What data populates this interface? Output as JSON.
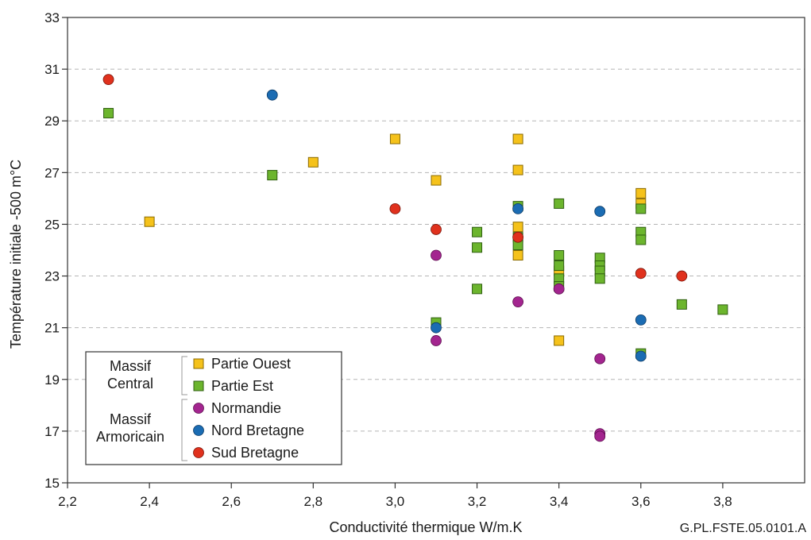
{
  "chart_data": {
    "type": "scatter",
    "title": "",
    "xlabel": "Conductivité thermique W/m.K",
    "ylabel": "Température initiale -500 m°C",
    "reference": "G.PL.FSTE.05.0101.A",
    "xlim": [
      2.2,
      4.0
    ],
    "ylim": [
      15,
      33
    ],
    "xticks": [
      2.2,
      2.4,
      2.6,
      2.8,
      3.0,
      3.2,
      3.4,
      3.6,
      3.8
    ],
    "xtick_labels": [
      "2,2",
      "2,4",
      "2,6",
      "2,8",
      "3,0",
      "3,2",
      "3,4",
      "3,6",
      "3,8"
    ],
    "yticks": [
      15,
      17,
      19,
      21,
      23,
      25,
      27,
      29,
      31,
      33
    ],
    "ytick_labels": [
      "15",
      "17",
      "19",
      "21",
      "23",
      "25",
      "27",
      "29",
      "31",
      "33"
    ],
    "grid": "horizontal dashed",
    "legend_position": "bottom-left",
    "legend_groups": [
      {
        "label_lines": [
          "Massif",
          "Central"
        ],
        "series": [
          "Partie Ouest",
          "Partie Est"
        ]
      },
      {
        "label_lines": [
          "Massif",
          "Armoricain"
        ],
        "series": [
          "Normandie",
          "Nord Bretagne",
          "Sud Bretagne"
        ]
      }
    ],
    "series": [
      {
        "name": "Partie Ouest",
        "marker": "square",
        "color": "#f5c21b",
        "stroke": "#8a6a00",
        "points": [
          [
            2.4,
            25.1
          ],
          [
            2.8,
            27.4
          ],
          [
            3.0,
            28.3
          ],
          [
            3.1,
            26.7
          ],
          [
            3.3,
            28.3
          ],
          [
            3.3,
            27.1
          ],
          [
            3.3,
            24.9
          ],
          [
            3.3,
            23.8
          ],
          [
            3.4,
            23.2
          ],
          [
            3.4,
            20.5
          ],
          [
            3.6,
            26.2
          ],
          [
            3.6,
            25.8
          ]
        ]
      },
      {
        "name": "Partie Est",
        "marker": "square",
        "color": "#6cb52d",
        "stroke": "#2f5e10",
        "points": [
          [
            2.3,
            29.3
          ],
          [
            2.7,
            26.9
          ],
          [
            3.1,
            21.2
          ],
          [
            3.2,
            24.7
          ],
          [
            3.2,
            24.1
          ],
          [
            3.2,
            22.5
          ],
          [
            3.3,
            25.7
          ],
          [
            3.3,
            24.5
          ],
          [
            3.3,
            24.2
          ],
          [
            3.4,
            25.8
          ],
          [
            3.4,
            23.8
          ],
          [
            3.4,
            23.4
          ],
          [
            3.4,
            22.9
          ],
          [
            3.4,
            22.6
          ],
          [
            3.5,
            23.7
          ],
          [
            3.5,
            23.4
          ],
          [
            3.5,
            23.2
          ],
          [
            3.5,
            22.9
          ],
          [
            3.6,
            25.6
          ],
          [
            3.6,
            24.7
          ],
          [
            3.6,
            24.4
          ],
          [
            3.6,
            20.0
          ],
          [
            3.7,
            21.9
          ],
          [
            3.8,
            21.7
          ]
        ]
      },
      {
        "name": "Normandie",
        "marker": "circle",
        "color": "#a3258f",
        "stroke": "#5e1050",
        "points": [
          [
            3.1,
            23.8
          ],
          [
            3.1,
            20.5
          ],
          [
            3.3,
            22.0
          ],
          [
            3.4,
            22.5
          ],
          [
            3.5,
            19.8
          ],
          [
            3.5,
            16.9
          ],
          [
            3.5,
            16.8
          ]
        ]
      },
      {
        "name": "Nord Bretagne",
        "marker": "circle",
        "color": "#1b6cb3",
        "stroke": "#0c3a66",
        "points": [
          [
            2.7,
            30.0
          ],
          [
            3.1,
            21.0
          ],
          [
            3.3,
            25.6
          ],
          [
            3.5,
            25.5
          ],
          [
            3.6,
            21.3
          ],
          [
            3.6,
            19.9
          ]
        ]
      },
      {
        "name": "Sud Bretagne",
        "marker": "circle",
        "color": "#e0311d",
        "stroke": "#7a150a",
        "points": [
          [
            2.3,
            30.6
          ],
          [
            3.0,
            25.6
          ],
          [
            3.1,
            24.8
          ],
          [
            3.3,
            24.5
          ],
          [
            3.6,
            23.1
          ],
          [
            3.7,
            23.0
          ]
        ]
      }
    ]
  }
}
